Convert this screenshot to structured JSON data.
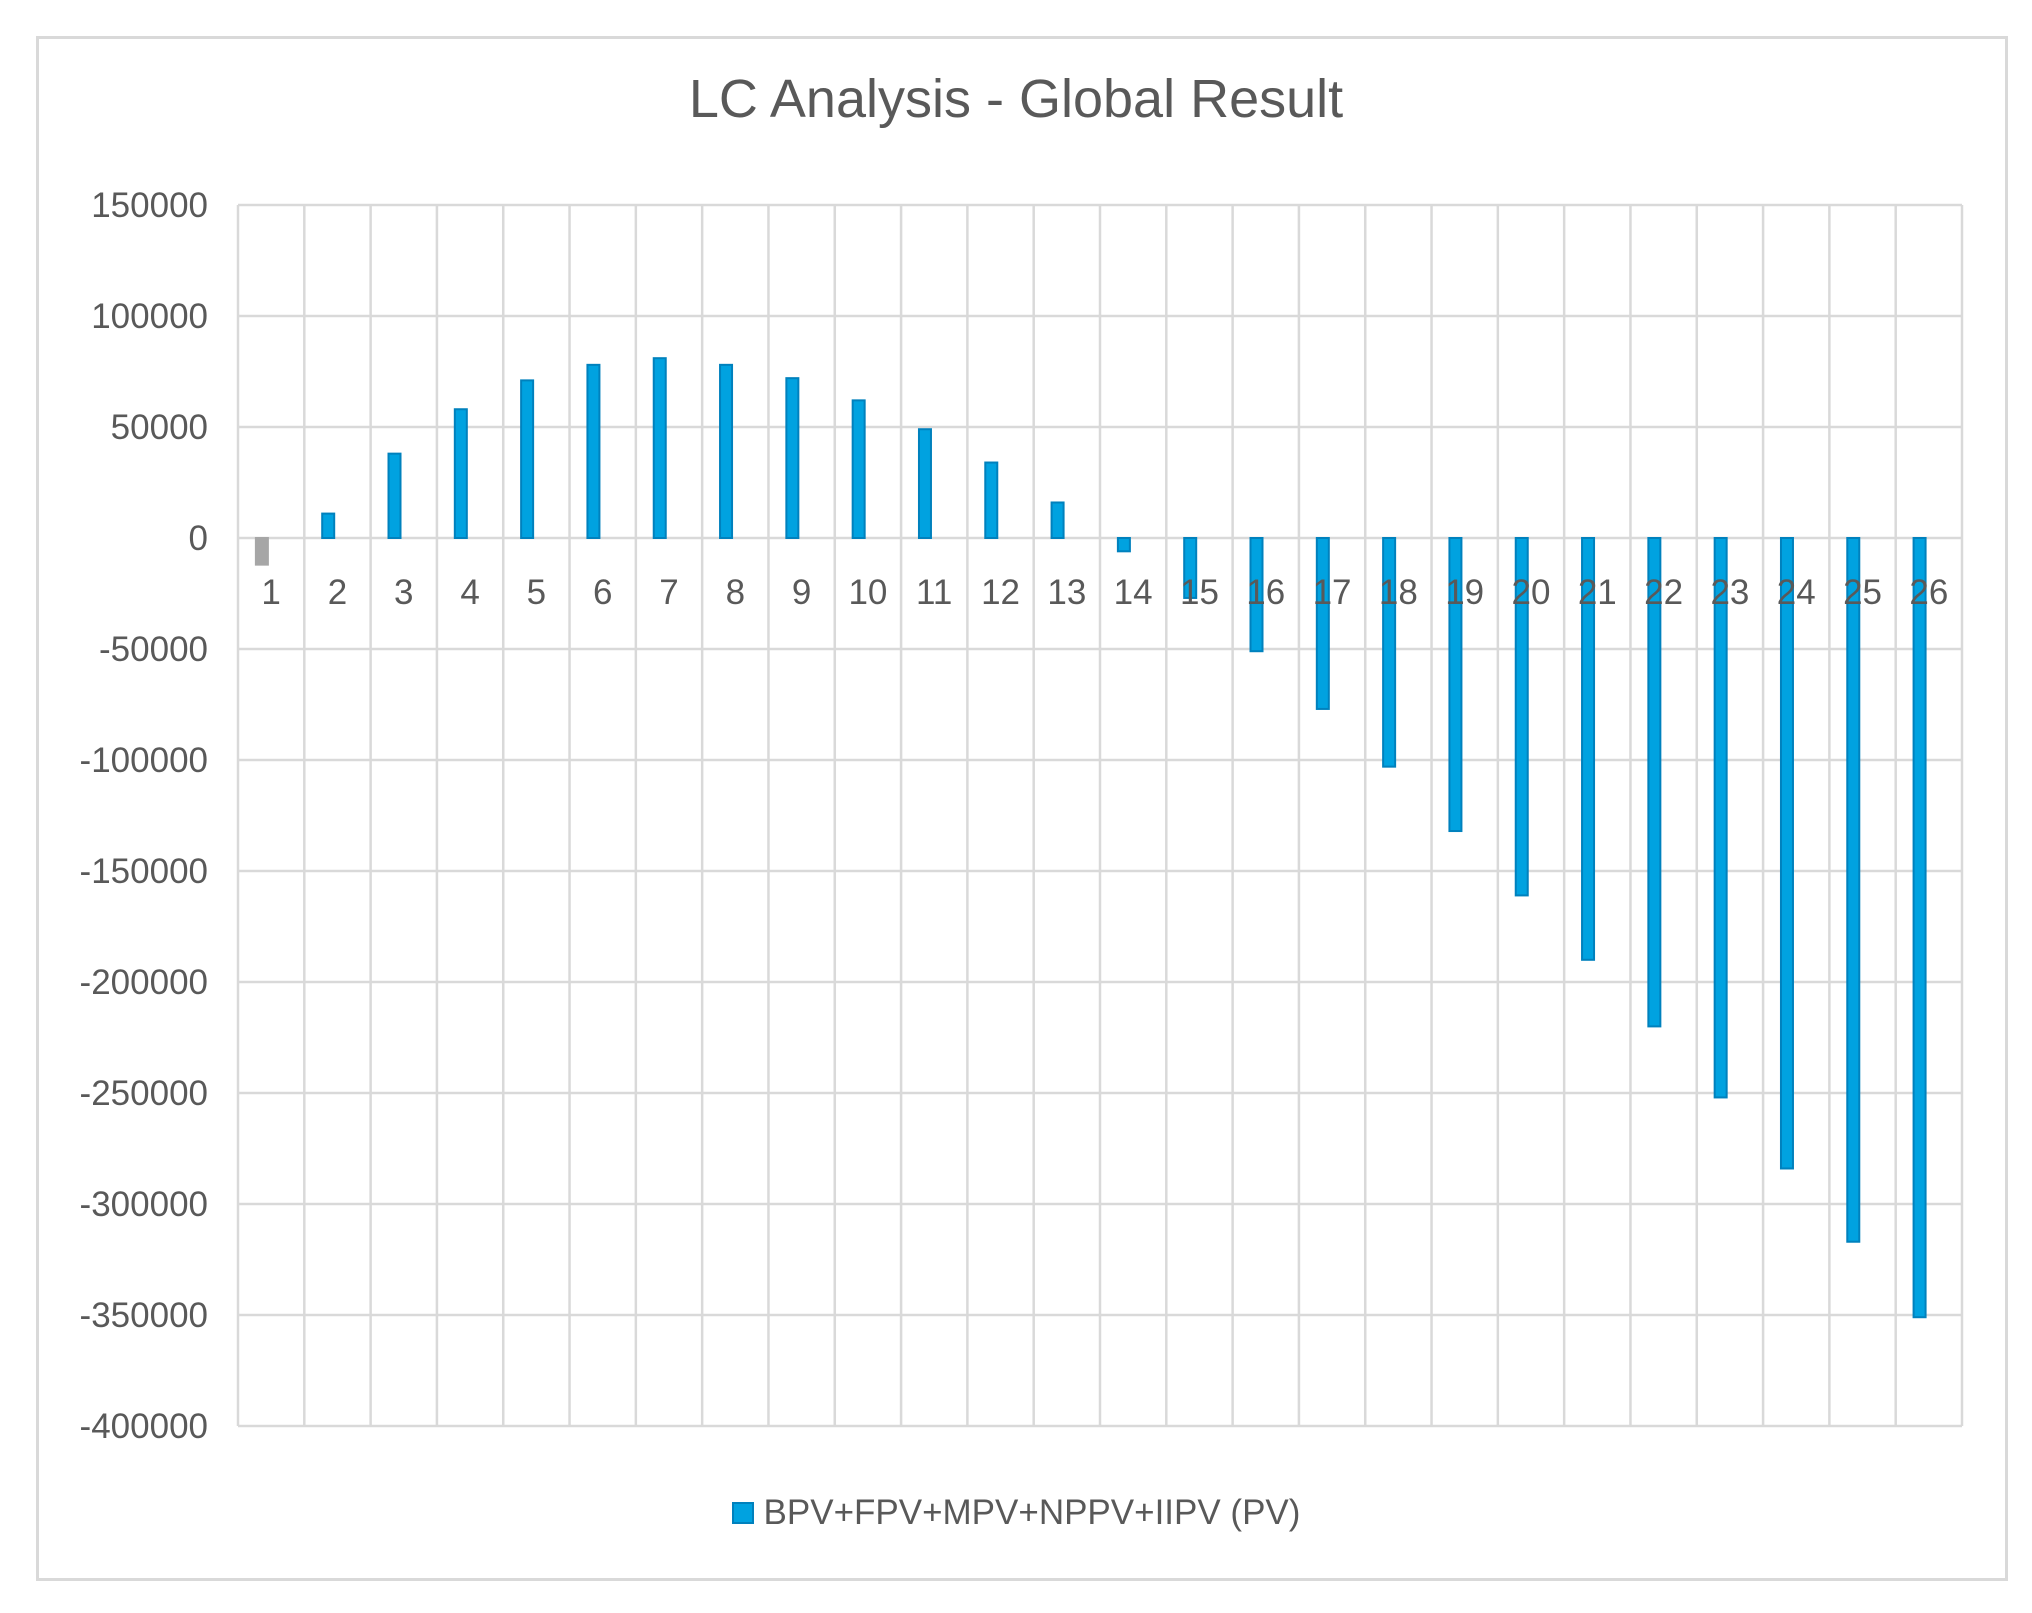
{
  "chart_data": {
    "type": "bar",
    "title": "LC Analysis - Global Result",
    "xlabel": "",
    "ylabel": "",
    "categories": [
      "1",
      "2",
      "3",
      "4",
      "5",
      "6",
      "7",
      "8",
      "9",
      "10",
      "11",
      "12",
      "13",
      "14",
      "15",
      "16",
      "17",
      "18",
      "19",
      "20",
      "21",
      "22",
      "23",
      "24",
      "25",
      "26"
    ],
    "series": [
      {
        "name": "BPV+FPV+MPV+NPPV+IIPV (PV)",
        "values": [
          -12000,
          11000,
          38000,
          58000,
          71000,
          78000,
          81000,
          78000,
          72000,
          62000,
          49000,
          34000,
          16000,
          -6000,
          -27000,
          -51000,
          -77000,
          -103000,
          -132000,
          -161000,
          -190000,
          -220000,
          -252000,
          -284000,
          -317000,
          -351000
        ]
      }
    ],
    "ylim": [
      -400000,
      150000
    ],
    "y_ticks": [
      150000,
      100000,
      50000,
      0,
      -50000,
      -100000,
      -150000,
      -200000,
      -250000,
      -300000,
      -350000,
      -400000
    ],
    "grid": true,
    "legend_position": "bottom",
    "colors": {
      "bar_fill": "#00a2e0",
      "bar_edge": "#0081bd",
      "first_bar_fill": "#a6a6a6",
      "grid": "#d9d9d9",
      "text": "#595959"
    }
  }
}
